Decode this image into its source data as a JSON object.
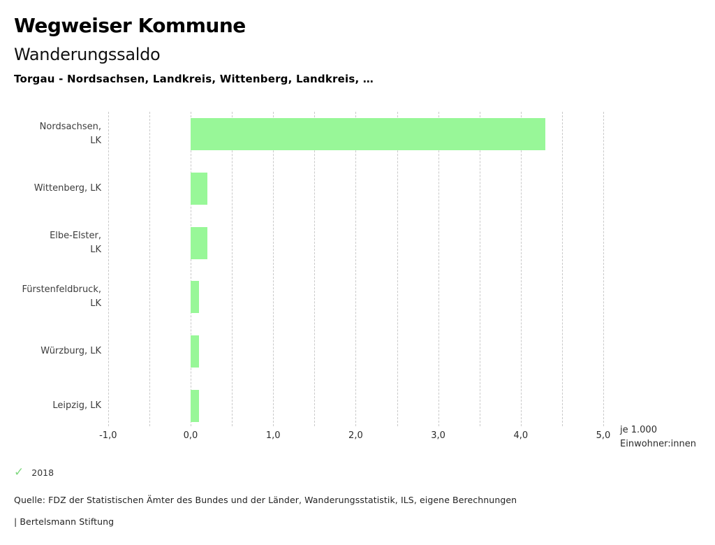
{
  "header": {
    "title": "Wegweiser Kommune",
    "subtitle": "Wanderungssaldo",
    "selection": "Torgau - Nordsachsen, Landkreis, Wittenberg, Landkreis, …"
  },
  "chart_data": {
    "type": "bar",
    "orientation": "horizontal",
    "title": "Wanderungssaldo",
    "categories": [
      "Nordsachsen,\nLK",
      "Wittenberg, LK",
      "Elbe-Elster,\nLK",
      "Fürstenfeldbruck,\nLK",
      "Würzburg, LK",
      "Leipzig, LK"
    ],
    "series": [
      {
        "name": "2018",
        "values": [
          4.3,
          0.2,
          0.2,
          0.1,
          0.1,
          0.1
        ]
      }
    ],
    "xlabel": "je 1.000 Einwohner:innen",
    "xlim": [
      -1.0,
      5.0
    ],
    "grid_step": 0.5,
    "grid_on": true,
    "x_ticks": [
      {
        "value": -1,
        "label": "-1,0"
      },
      {
        "value": 0,
        "label": "0,0"
      },
      {
        "value": 1,
        "label": "1,0"
      },
      {
        "value": 2,
        "label": "2,0"
      },
      {
        "value": 3,
        "label": "3,0"
      },
      {
        "value": 4,
        "label": "4,0"
      },
      {
        "value": 5,
        "label": "5,0"
      }
    ],
    "bar_color": "#98f798",
    "grid_color": "#c9c9c9",
    "legend_position": "bottom-left"
  },
  "legend": {
    "check_icon": "✓",
    "check_color": "#80d880",
    "year": "2018"
  },
  "source": "Quelle: FDZ der Statistischen Ämter des Bundes und der Länder, Wanderungsstatistik, ILS, eigene Berechnungen",
  "footer": "| Bertelsmann Stiftung"
}
